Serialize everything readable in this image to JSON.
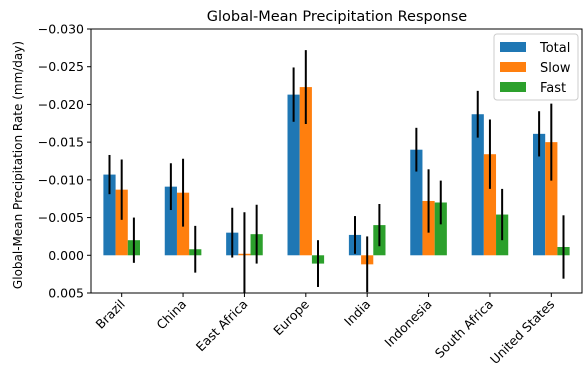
{
  "chart_data": {
    "type": "bar",
    "title": "Global-Mean Precipitation Response",
    "xlabel": "",
    "ylabel": "Global-Mean Precipitation Rate (mm/day)",
    "ylim": [
      0.005,
      -0.03
    ],
    "y_inverted": true,
    "yticks": [
      -0.03,
      -0.025,
      -0.02,
      -0.015,
      -0.01,
      -0.005,
      0.0,
      0.005
    ],
    "ytick_labels": [
      "−0.030",
      "−0.025",
      "−0.020",
      "−0.015",
      "−0.010",
      "−0.005",
      "0.000",
      "0.005"
    ],
    "categories": [
      "Brazil",
      "China",
      "East Africa",
      "Europe",
      "India",
      "Indonesia",
      "South Africa",
      "United States"
    ],
    "series": [
      {
        "name": "Total",
        "color": "#1f77b4",
        "values": [
          -0.0107,
          -0.0091,
          -0.003,
          -0.0213,
          -0.0027,
          -0.014,
          -0.0187,
          -0.0161
        ],
        "errors": [
          0.0026,
          0.0031,
          0.0033,
          0.0036,
          0.0025,
          0.0029,
          0.0031,
          0.003
        ]
      },
      {
        "name": "Slow",
        "color": "#ff7f0e",
        "values": [
          -0.0087,
          -0.0083,
          -0.0002,
          -0.0223,
          0.0012,
          -0.0072,
          -0.0134,
          -0.015
        ],
        "errors": [
          0.004,
          0.0045,
          0.0055,
          0.0049,
          0.0037,
          0.0042,
          0.0046,
          0.0051
        ]
      },
      {
        "name": "Fast",
        "color": "#2ca02c",
        "values": [
          -0.002,
          -0.0008,
          -0.0028,
          0.0011,
          -0.004,
          -0.007,
          -0.0054,
          -0.0011
        ],
        "errors": [
          0.003,
          0.0031,
          0.0039,
          0.0031,
          0.0028,
          0.0029,
          0.0034,
          0.0042
        ]
      }
    ],
    "legend": {
      "placement": "top-right",
      "entries": [
        "Total",
        "Slow",
        "Fast"
      ]
    },
    "grid": false
  }
}
